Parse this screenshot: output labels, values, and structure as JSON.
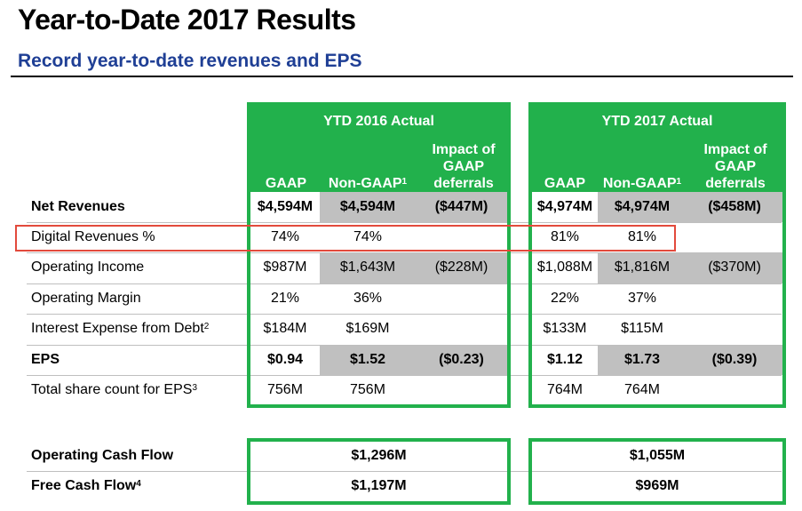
{
  "header": {
    "title": "Year-to-Date 2017 Results",
    "subtitle": "Record year-to-date revenues and EPS"
  },
  "groups": [
    {
      "title": "YTD 2016 Actual",
      "col_gaap": "GAAP",
      "col_nongaap": "Non-GAAP",
      "col_nongaap_sup": "1",
      "col_impact": "Impact of GAAP deferrals"
    },
    {
      "title": "YTD 2017 Actual",
      "col_gaap": "GAAP",
      "col_nongaap": "Non-GAAP",
      "col_nongaap_sup": "1",
      "col_impact": "Impact of GAAP deferrals"
    }
  ],
  "rows": [
    {
      "label": "Net Revenues",
      "sup": "",
      "bold": true,
      "y2016": {
        "gaap": "$4,594M",
        "nongaap": "$4,594M",
        "impact": "($447M)"
      },
      "y2017": {
        "gaap": "$4,974M",
        "nongaap": "$4,974M",
        "impact": "($458M)"
      }
    },
    {
      "label": "Digital Revenues %",
      "sup": "",
      "bold": false,
      "y2016": {
        "gaap": "74%",
        "nongaap": "74%",
        "impact": ""
      },
      "y2017": {
        "gaap": "81%",
        "nongaap": "81%",
        "impact": ""
      }
    },
    {
      "label": "Operating Income",
      "sup": "",
      "bold": false,
      "y2016": {
        "gaap": "$987M",
        "nongaap": "$1,643M",
        "impact": "($228M)"
      },
      "y2017": {
        "gaap": "$1,088M",
        "nongaap": "$1,816M",
        "impact": "($370M)"
      }
    },
    {
      "label": "Operating Margin",
      "sup": "",
      "bold": false,
      "y2016": {
        "gaap": "21%",
        "nongaap": "36%",
        "impact": ""
      },
      "y2017": {
        "gaap": "22%",
        "nongaap": "37%",
        "impact": ""
      }
    },
    {
      "label": "Interest Expense from Debt",
      "sup": "2",
      "bold": false,
      "y2016": {
        "gaap": "$184M",
        "nongaap": "$169M",
        "impact": ""
      },
      "y2017": {
        "gaap": "$133M",
        "nongaap": "$115M",
        "impact": ""
      }
    },
    {
      "label": "EPS",
      "sup": "",
      "bold": true,
      "y2016": {
        "gaap": "$0.94",
        "nongaap": "$1.52",
        "impact": "($0.23)"
      },
      "y2017": {
        "gaap": "$1.12",
        "nongaap": "$1.73",
        "impact": "($0.39)"
      }
    },
    {
      "label": "Total share count for EPS",
      "sup": "3",
      "bold": false,
      "y2016": {
        "gaap": "756M",
        "nongaap": "756M",
        "impact": ""
      },
      "y2017": {
        "gaap": "764M",
        "nongaap": "764M",
        "impact": ""
      }
    }
  ],
  "cashflow": [
    {
      "label": "Operating Cash Flow",
      "sup": "",
      "y2016": "$1,296M",
      "y2017": "$1,055M"
    },
    {
      "label": "Free Cash Flow",
      "sup": "4",
      "y2016": "$1,197M",
      "y2017": "$969M"
    }
  ],
  "colors": {
    "green": "#22b14c",
    "grey": "#c0c0c0",
    "navy": "#1f3f95",
    "highlight": "#e24a3c"
  }
}
